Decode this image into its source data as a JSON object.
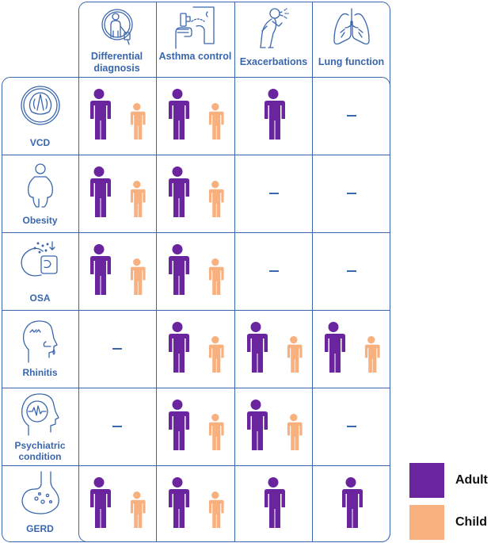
{
  "colors": {
    "grid": "#3a66ad",
    "adult": "#6a259e",
    "child": "#f8b07e"
  },
  "columns": [
    {
      "key": "differential_diagnosis",
      "label": "Differential diagnosis",
      "icon": "doctor-examining-icon"
    },
    {
      "key": "asthma_control",
      "label": "Asthma control",
      "icon": "inhaler-hand-icon"
    },
    {
      "key": "exacerbations",
      "label": "Exacerbations",
      "icon": "coughing-person-icon"
    },
    {
      "key": "lung_function",
      "label": "Lung function",
      "icon": "lungs-icon"
    }
  ],
  "rows": [
    {
      "key": "vcd",
      "label": "VCD",
      "icon": "vocal-cords-icon",
      "cells": [
        [
          "adult",
          "child"
        ],
        [
          "adult",
          "child"
        ],
        [
          "adult"
        ],
        []
      ]
    },
    {
      "key": "obesity",
      "label": "Obesity",
      "icon": "obese-person-icon",
      "cells": [
        [
          "adult",
          "child"
        ],
        [
          "adult",
          "child"
        ],
        [],
        []
      ]
    },
    {
      "key": "osa",
      "label": "OSA",
      "icon": "sleeping-head-icon",
      "cells": [
        [
          "adult",
          "child"
        ],
        [
          "adult",
          "child"
        ],
        [],
        []
      ]
    },
    {
      "key": "rhinitis",
      "label": "Rhinitis",
      "icon": "runny-nose-head-icon",
      "cells": [
        [],
        [
          "adult",
          "child"
        ],
        [
          "adult",
          "child"
        ],
        [
          "adult",
          "child"
        ]
      ]
    },
    {
      "key": "psychiatric",
      "label": "Psychiatric condition",
      "icon": "brain-head-icon",
      "cells": [
        [],
        [
          "adult",
          "child"
        ],
        [
          "adult",
          "child"
        ],
        []
      ]
    },
    {
      "key": "gerd",
      "label": "GERD",
      "icon": "stomach-icon",
      "cells": [
        [
          "adult",
          "child"
        ],
        [
          "adult",
          "child"
        ],
        [
          "adult"
        ],
        [
          "adult"
        ]
      ]
    }
  ],
  "empty_marker": "–",
  "legend": [
    {
      "key": "adult",
      "label": "Adult",
      "color": "#6a259e"
    },
    {
      "key": "child",
      "label": "Child",
      "color": "#f8b07e"
    }
  ]
}
